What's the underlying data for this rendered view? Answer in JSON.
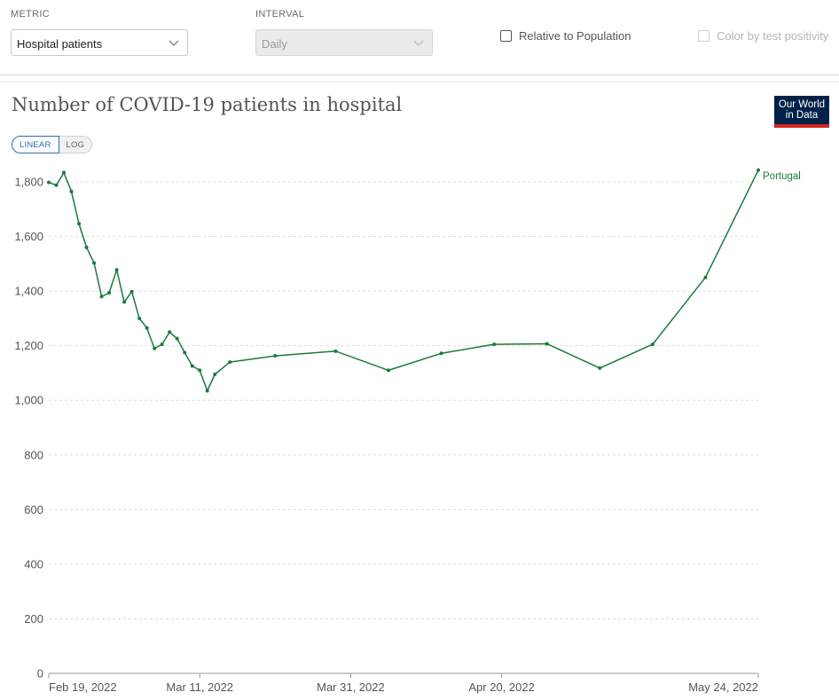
{
  "controls": {
    "metric_label": "METRIC",
    "metric_value": "Hospital patients",
    "interval_label": "INTERVAL",
    "interval_value": "Daily",
    "relative_label": "Relative to Population",
    "color_label": "Color by test positivity"
  },
  "logo": {
    "line1": "Our World",
    "line2": "in Data",
    "bg": "#002147",
    "accent": "#ce261e"
  },
  "scale": {
    "linear": "LINEAR",
    "log": "LOG"
  },
  "chart_data": {
    "type": "line",
    "title": "Number of COVID-19 patients in hospital",
    "y_ticks": [
      {
        "value": 0,
        "label": "0"
      },
      {
        "value": 200,
        "label": "200"
      },
      {
        "value": 400,
        "label": "400"
      },
      {
        "value": 600,
        "label": "600"
      },
      {
        "value": 800,
        "label": "800"
      },
      {
        "value": 1000,
        "label": "1,000"
      },
      {
        "value": 1200,
        "label": "1,200"
      },
      {
        "value": 1400,
        "label": "1,400"
      },
      {
        "value": 1600,
        "label": "1,600"
      },
      {
        "value": 1800,
        "label": "1,800"
      }
    ],
    "x_ticks": [
      {
        "date": "2022-02-19",
        "label": "Feb 19, 2022"
      },
      {
        "date": "2022-03-11",
        "label": "Mar 11, 2022"
      },
      {
        "date": "2022-03-31",
        "label": "Mar 31, 2022"
      },
      {
        "date": "2022-04-20",
        "label": "Apr 20, 2022"
      },
      {
        "date": "2022-05-24",
        "label": "May 24, 2022"
      }
    ],
    "xlim": [
      "2022-02-19",
      "2022-05-24"
    ],
    "ylim": [
      0,
      1800
    ],
    "grid": true,
    "series": [
      {
        "name": "Portugal",
        "color": "#1a7a3c",
        "points": [
          {
            "x": "2022-02-19",
            "y": 1798
          },
          {
            "x": "2022-02-20",
            "y": 1788
          },
          {
            "x": "2022-02-21",
            "y": 1834
          },
          {
            "x": "2022-02-22",
            "y": 1765
          },
          {
            "x": "2022-02-23",
            "y": 1647
          },
          {
            "x": "2022-02-24",
            "y": 1560
          },
          {
            "x": "2022-02-25",
            "y": 1503
          },
          {
            "x": "2022-02-26",
            "y": 1380
          },
          {
            "x": "2022-02-27",
            "y": 1394
          },
          {
            "x": "2022-02-28",
            "y": 1478
          },
          {
            "x": "2022-03-01",
            "y": 1360
          },
          {
            "x": "2022-03-02",
            "y": 1398
          },
          {
            "x": "2022-03-03",
            "y": 1300
          },
          {
            "x": "2022-03-04",
            "y": 1265
          },
          {
            "x": "2022-03-05",
            "y": 1190
          },
          {
            "x": "2022-03-06",
            "y": 1205
          },
          {
            "x": "2022-03-07",
            "y": 1250
          },
          {
            "x": "2022-03-08",
            "y": 1226
          },
          {
            "x": "2022-03-09",
            "y": 1175
          },
          {
            "x": "2022-03-10",
            "y": 1126
          },
          {
            "x": "2022-03-11",
            "y": 1110
          },
          {
            "x": "2022-03-12",
            "y": 1035
          },
          {
            "x": "2022-03-13",
            "y": 1095
          },
          {
            "x": "2022-03-15",
            "y": 1140
          },
          {
            "x": "2022-03-21",
            "y": 1163
          },
          {
            "x": "2022-03-29",
            "y": 1180
          },
          {
            "x": "2022-04-05",
            "y": 1110
          },
          {
            "x": "2022-04-12",
            "y": 1172
          },
          {
            "x": "2022-04-19",
            "y": 1205
          },
          {
            "x": "2022-04-26",
            "y": 1207
          },
          {
            "x": "2022-05-03",
            "y": 1118
          },
          {
            "x": "2022-05-10",
            "y": 1205
          },
          {
            "x": "2022-05-17",
            "y": 1450
          },
          {
            "x": "2022-05-24",
            "y": 1843
          }
        ]
      }
    ]
  }
}
